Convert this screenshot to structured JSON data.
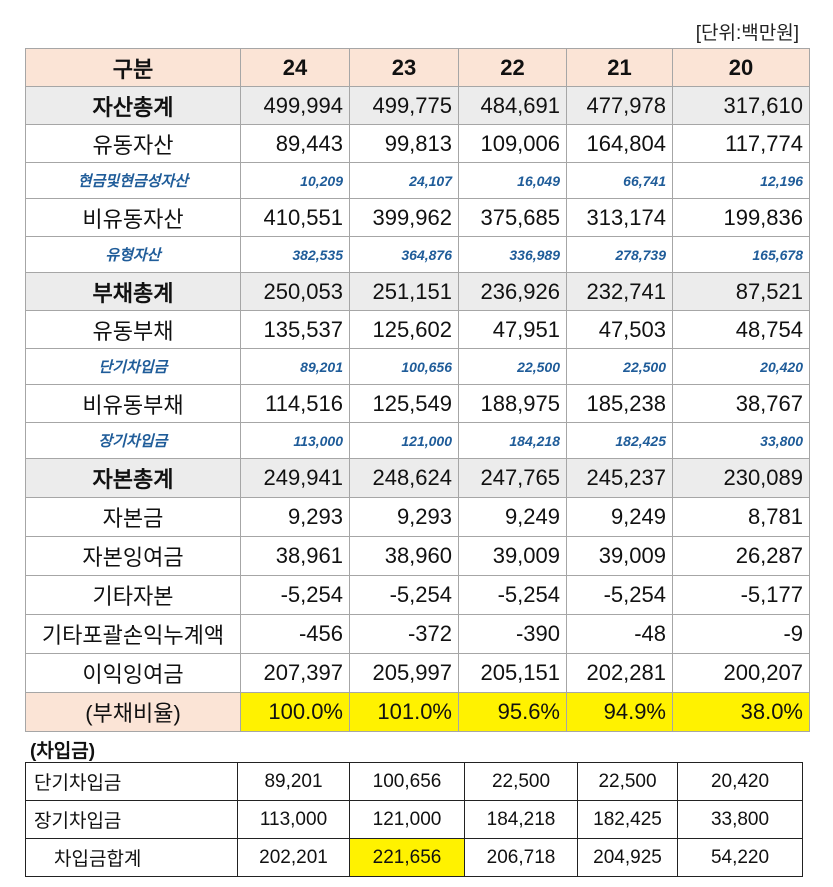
{
  "unit": "[단위:백만원]",
  "header": [
    "구분",
    "24",
    "23",
    "22",
    "21",
    "20"
  ],
  "rows": [
    {
      "label": "자산총계",
      "v": [
        "499,994",
        "499,775",
        "484,691",
        "477,978",
        "317,610"
      ]
    },
    {
      "label": "유동자산",
      "v": [
        "89,443",
        "99,813",
        "109,006",
        "164,804",
        "117,774"
      ]
    },
    {
      "label": "현금및현금성자산",
      "v": [
        "10,209",
        "24,107",
        "16,049",
        "66,741",
        "12,196"
      ]
    },
    {
      "label": "비유동자산",
      "v": [
        "410,551",
        "399,962",
        "375,685",
        "313,174",
        "199,836"
      ]
    },
    {
      "label": "유형자산",
      "v": [
        "382,535",
        "364,876",
        "336,989",
        "278,739",
        "165,678"
      ]
    },
    {
      "label": "부채총계",
      "v": [
        "250,053",
        "251,151",
        "236,926",
        "232,741",
        "87,521"
      ]
    },
    {
      "label": "유동부채",
      "v": [
        "135,537",
        "125,602",
        "47,951",
        "47,503",
        "48,754"
      ]
    },
    {
      "label": "단기차입금",
      "v": [
        "89,201",
        "100,656",
        "22,500",
        "22,500",
        "20,420"
      ]
    },
    {
      "label": "비유동부채",
      "v": [
        "114,516",
        "125,549",
        "188,975",
        "185,238",
        "38,767"
      ]
    },
    {
      "label": "장기차입금",
      "v": [
        "113,000",
        "121,000",
        "184,218",
        "182,425",
        "33,800"
      ]
    },
    {
      "label": "자본총계",
      "v": [
        "249,941",
        "248,624",
        "247,765",
        "245,237",
        "230,089"
      ]
    },
    {
      "label": "자본금",
      "v": [
        "9,293",
        "9,293",
        "9,249",
        "9,249",
        "8,781"
      ]
    },
    {
      "label": "자본잉여금",
      "v": [
        "38,961",
        "38,960",
        "39,009",
        "39,009",
        "26,287"
      ]
    },
    {
      "label": "기타자본",
      "v": [
        "-5,254",
        "-5,254",
        "-5,254",
        "-5,254",
        "-5,177"
      ]
    },
    {
      "label": "기타포괄손익누계액",
      "v": [
        "-456",
        "-372",
        "-390",
        "-48",
        "-9"
      ]
    },
    {
      "label": "이익잉여금",
      "v": [
        "207,397",
        "205,997",
        "205,151",
        "202,281",
        "200,207"
      ]
    }
  ],
  "ratio": {
    "label": "(부채비율)",
    "v": [
      "100.0%",
      "101.0%",
      "95.6%",
      "94.9%",
      "38.0%"
    ]
  },
  "loan_title": "(차입금)",
  "loans": [
    {
      "label": "단기차입금",
      "v": [
        "89,201",
        "100,656",
        "22,500",
        "22,500",
        "20,420"
      ]
    },
    {
      "label": "장기차입금",
      "v": [
        "113,000",
        "121,000",
        "184,218",
        "182,425",
        "33,800"
      ]
    },
    {
      "label": "차입금합계",
      "v": [
        "202,201",
        "221,656",
        "206,718",
        "204,925",
        "54,220"
      ]
    }
  ],
  "colors": {
    "header_bg": "#fbe4d6",
    "total_bg": "#ececec",
    "highlight": "#fff200",
    "sub_text": "#1f5c99"
  }
}
